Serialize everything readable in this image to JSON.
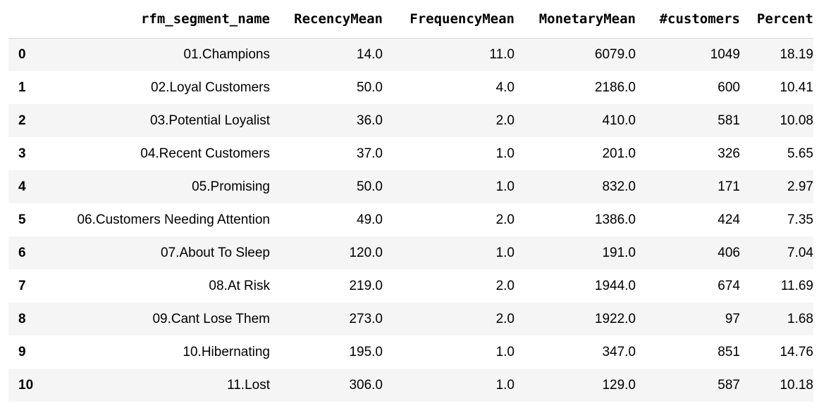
{
  "table": {
    "columns": [
      "",
      "rfm_segment_name",
      "RecencyMean",
      "FrequencyMean",
      "MonetaryMean",
      "#customers",
      "Percent"
    ],
    "rows": [
      [
        "0",
        "01.Champions",
        "14.0",
        "11.0",
        "6079.0",
        "1049",
        "18.19"
      ],
      [
        "1",
        "02.Loyal Customers",
        "50.0",
        "4.0",
        "2186.0",
        "600",
        "10.41"
      ],
      [
        "2",
        "03.Potential Loyalist",
        "36.0",
        "2.0",
        "410.0",
        "581",
        "10.08"
      ],
      [
        "3",
        "04.Recent Customers",
        "37.0",
        "1.0",
        "201.0",
        "326",
        "5.65"
      ],
      [
        "4",
        "05.Promising",
        "50.0",
        "1.0",
        "832.0",
        "171",
        "2.97"
      ],
      [
        "5",
        "06.Customers Needing Attention",
        "49.0",
        "2.0",
        "1386.0",
        "424",
        "7.35"
      ],
      [
        "6",
        "07.About To Sleep",
        "120.0",
        "1.0",
        "191.0",
        "406",
        "7.04"
      ],
      [
        "7",
        "08.At Risk",
        "219.0",
        "2.0",
        "1944.0",
        "674",
        "11.69"
      ],
      [
        "8",
        "09.Cant Lose Them",
        "273.0",
        "2.0",
        "1922.0",
        "97",
        "1.68"
      ],
      [
        "9",
        "10.Hibernating",
        "195.0",
        "1.0",
        "347.0",
        "851",
        "14.76"
      ],
      [
        "10",
        "11.Lost",
        "306.0",
        "1.0",
        "129.0",
        "587",
        "10.18"
      ]
    ]
  },
  "colors": {
    "stripe": "#f5f5f5",
    "background": "#ffffff",
    "header_border": "#d8d8d8",
    "text": "#000000"
  }
}
